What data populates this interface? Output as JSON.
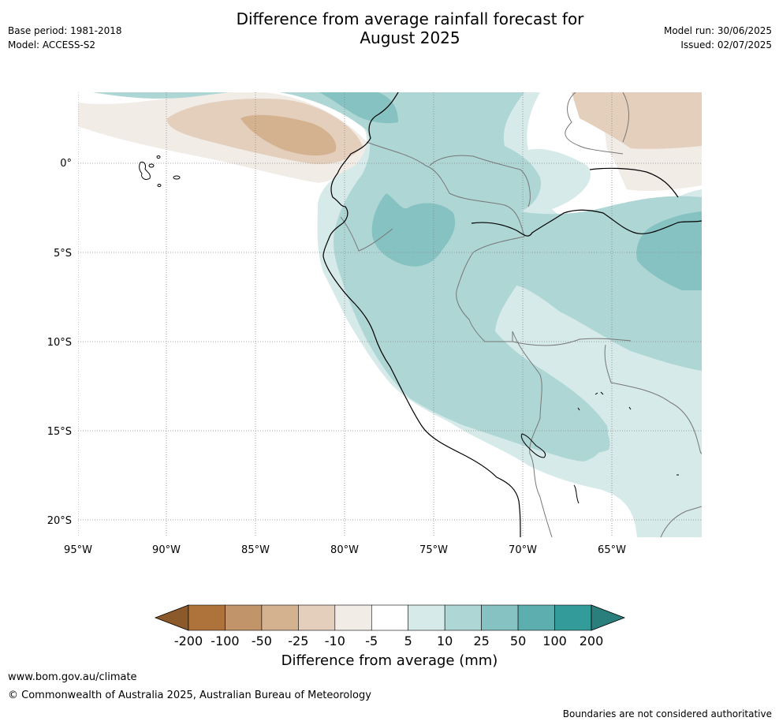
{
  "title_line1": "Difference from average rainfall forecast for",
  "title_line2": "August 2025",
  "base_period": "Base period: 1981-2018",
  "model": "Model: ACCESS-S2",
  "model_run": "Model run: 30/06/2025",
  "issued": "Issued: 02/07/2025",
  "footer_url": "www.bom.gov.au/climate",
  "footer_copyright": "© Commonwealth of Australia 2025, Australian Bureau of Meteorology",
  "footer_note": "Boundaries are not considered authoritative",
  "lat_labels": [
    "0°",
    "5°S",
    "10°S",
    "15°S",
    "20°S"
  ],
  "lon_labels": [
    "95°W",
    "90°W",
    "85°W",
    "80°W",
    "75°W",
    "70°W",
    "65°W"
  ],
  "colorbar": {
    "title": "Difference from average (mm)",
    "labels": [
      "-200",
      "-100",
      "-50",
      "-25",
      "-10",
      "-5",
      "5",
      "10",
      "25",
      "50",
      "100",
      "200"
    ],
    "colors": [
      "#8c5a2a",
      "#ad733a",
      "#c1946a",
      "#d4b18f",
      "#e4cfbd",
      "#f2ece7",
      "#ffffff",
      "#d5eae9",
      "#aed6d5",
      "#85c2c1",
      "#5daeae",
      "#339c9a",
      "#2a7f7d"
    ]
  }
}
